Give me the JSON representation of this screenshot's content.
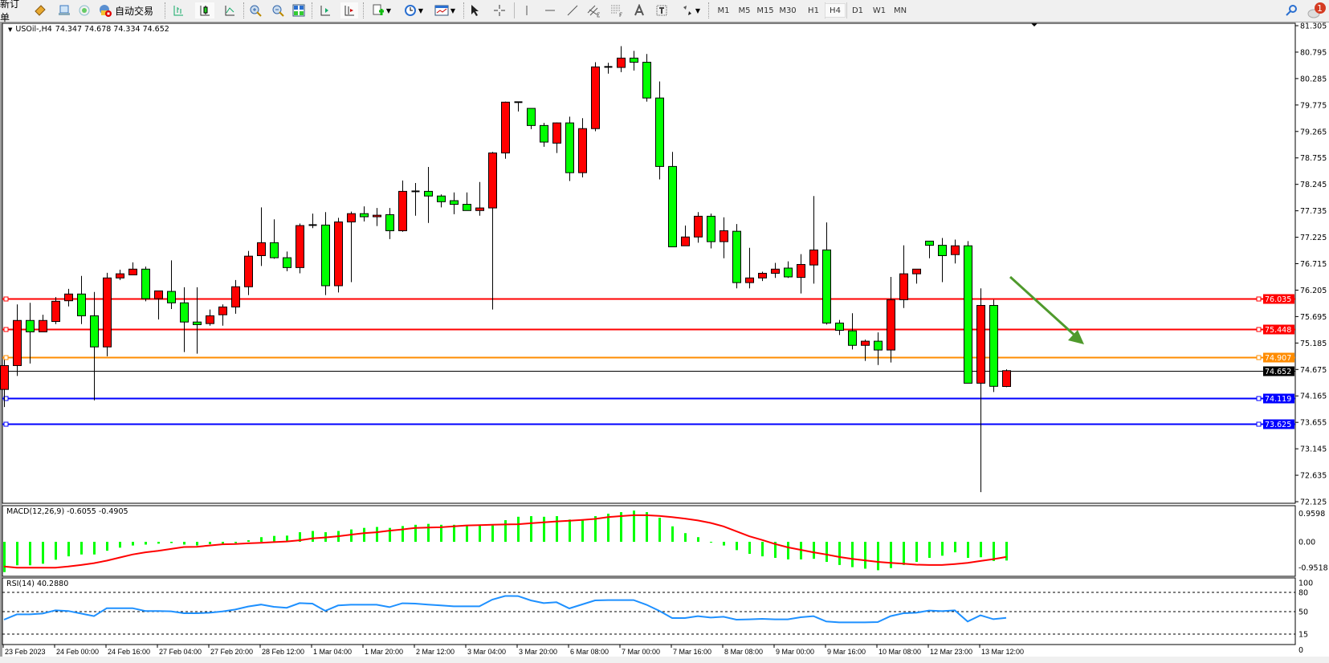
{
  "toolbar": {
    "new_order_label": "新订单",
    "auto_trading_label": "自动交易",
    "periods": [
      "M1",
      "M5",
      "M15",
      "M30",
      "H1",
      "H4",
      "D1",
      "W1",
      "MN"
    ],
    "active_period": "H4",
    "notification_count": "1",
    "icons": [
      "book-icon",
      "terminal-icon",
      "signal-icon",
      "auto-trading-icon",
      "bar-chart-icon",
      "candlestick-icon",
      "line-chart-icon",
      "zoom-in-icon",
      "zoom-out-icon",
      "tile-windows-icon",
      "chart-shift-icon",
      "autoscroll-icon",
      "new-chart-icon",
      "clock-icon",
      "template-icon",
      "cursor-icon",
      "crosshair-icon",
      "vertical-line-icon",
      "horizontal-line-icon",
      "trendline-icon",
      "equidistant-channel-icon",
      "fibonacci-icon",
      "text-icon",
      "text-label-icon",
      "arrows-icon",
      "search-icon",
      "chat-icon"
    ]
  },
  "chart": {
    "symbol_label": "USOil-,H4",
    "ohlc_text": "74.347 74.678 74.334 74.652"
  },
  "chart_data": {
    "type": "candlestick",
    "candle_format": [
      "open",
      "high",
      "low",
      "close"
    ],
    "bull_color": "#ff0000",
    "bear_color": "#00ff00",
    "candles": [
      [
        74.29,
        74.86,
        73.95,
        74.75
      ],
      [
        74.75,
        75.93,
        74.55,
        75.62
      ],
      [
        75.62,
        75.96,
        74.79,
        75.4
      ],
      [
        75.4,
        75.73,
        75.4,
        75.62
      ],
      [
        75.6,
        76.07,
        75.55,
        75.99
      ],
      [
        76.0,
        76.23,
        75.89,
        76.13
      ],
      [
        76.13,
        76.48,
        75.55,
        75.71
      ],
      [
        75.71,
        76.17,
        74.08,
        75.11
      ],
      [
        75.11,
        76.54,
        74.93,
        76.44
      ],
      [
        76.44,
        76.6,
        76.4,
        76.52
      ],
      [
        76.5,
        76.74,
        76.5,
        76.61
      ],
      [
        76.61,
        76.66,
        75.99,
        76.04
      ],
      [
        76.04,
        76.19,
        75.64,
        76.19
      ],
      [
        76.18,
        76.78,
        75.84,
        75.96
      ],
      [
        75.96,
        76.26,
        75.01,
        75.59
      ],
      [
        75.59,
        76.26,
        74.98,
        75.54
      ],
      [
        75.56,
        75.83,
        75.52,
        75.71
      ],
      [
        75.73,
        75.93,
        75.52,
        75.88
      ],
      [
        75.88,
        76.4,
        75.75,
        76.27
      ],
      [
        76.27,
        76.96,
        76.11,
        76.86
      ],
      [
        76.87,
        77.8,
        76.67,
        77.12
      ],
      [
        77.12,
        77.57,
        76.81,
        76.83
      ],
      [
        76.83,
        76.95,
        76.57,
        76.64
      ],
      [
        76.64,
        77.49,
        76.53,
        77.45
      ],
      [
        77.45,
        77.68,
        77.4,
        77.46
      ],
      [
        77.46,
        77.71,
        76.11,
        76.29
      ],
      [
        76.29,
        77.6,
        76.16,
        77.52
      ],
      [
        77.52,
        77.72,
        76.36,
        77.68
      ],
      [
        77.68,
        77.82,
        77.53,
        77.62
      ],
      [
        77.62,
        77.79,
        77.44,
        77.65
      ],
      [
        77.66,
        77.79,
        77.19,
        77.35
      ],
      [
        77.35,
        78.32,
        77.33,
        78.11
      ],
      [
        78.11,
        78.27,
        77.64,
        78.11
      ],
      [
        78.11,
        78.58,
        77.5,
        78.02
      ],
      [
        78.02,
        78.05,
        77.8,
        77.91
      ],
      [
        77.93,
        78.09,
        77.67,
        77.86
      ],
      [
        77.86,
        78.09,
        77.74,
        77.74
      ],
      [
        77.74,
        78.29,
        77.64,
        77.79
      ],
      [
        77.79,
        78.87,
        75.83,
        78.85
      ],
      [
        78.85,
        79.84,
        78.74,
        79.83
      ],
      [
        79.83,
        79.84,
        79.65,
        79.83
      ],
      [
        79.71,
        79.71,
        79.31,
        79.38
      ],
      [
        79.38,
        79.43,
        78.97,
        79.06
      ],
      [
        79.04,
        79.44,
        78.85,
        79.43
      ],
      [
        79.43,
        79.55,
        78.31,
        78.47
      ],
      [
        78.47,
        79.52,
        78.38,
        79.32
      ],
      [
        79.32,
        80.6,
        79.27,
        80.51
      ],
      [
        80.51,
        80.59,
        80.38,
        80.51
      ],
      [
        80.5,
        80.91,
        80.41,
        80.68
      ],
      [
        80.68,
        80.82,
        80.44,
        80.6
      ],
      [
        80.6,
        80.76,
        79.84,
        79.91
      ],
      [
        79.91,
        80.23,
        78.34,
        78.59
      ],
      [
        78.59,
        78.87,
        77.04,
        77.04
      ],
      [
        77.06,
        77.45,
        77.06,
        77.23
      ],
      [
        77.23,
        77.71,
        77.12,
        77.63
      ],
      [
        77.63,
        77.68,
        77.01,
        77.14
      ],
      [
        77.14,
        77.61,
        76.82,
        77.35
      ],
      [
        77.34,
        77.48,
        76.24,
        76.35
      ],
      [
        76.35,
        77.02,
        76.24,
        76.44
      ],
      [
        76.44,
        76.56,
        76.38,
        76.53
      ],
      [
        76.53,
        76.73,
        76.44,
        76.61
      ],
      [
        76.63,
        76.76,
        76.44,
        76.46
      ],
      [
        76.45,
        76.9,
        76.14,
        76.7
      ],
      [
        76.69,
        78.02,
        76.33,
        76.98
      ],
      [
        76.98,
        77.51,
        75.54,
        75.57
      ],
      [
        75.57,
        75.63,
        75.34,
        75.43
      ],
      [
        75.42,
        75.76,
        75.06,
        75.14
      ],
      [
        75.14,
        75.25,
        74.84,
        75.22
      ],
      [
        75.22,
        75.39,
        74.76,
        75.05
      ],
      [
        75.05,
        76.46,
        74.81,
        76.02
      ],
      [
        76.02,
        77.07,
        75.86,
        76.52
      ],
      [
        76.52,
        76.61,
        76.33,
        76.61
      ],
      [
        77.15,
        77.15,
        76.82,
        77.07
      ],
      [
        77.07,
        77.21,
        76.36,
        76.87
      ],
      [
        76.89,
        77.18,
        76.72,
        77.06
      ],
      [
        77.06,
        77.15,
        74.41,
        74.41
      ],
      [
        74.41,
        76.24,
        72.31,
        75.91
      ],
      [
        75.91,
        76.02,
        74.24,
        74.35
      ],
      [
        74.347,
        74.678,
        74.334,
        74.652
      ]
    ],
    "price_axis": {
      "ylim": [
        72.125,
        81.305
      ],
      "ticks": [
        "81.305",
        "80.795",
        "80.285",
        "79.775",
        "79.265",
        "78.755",
        "78.245",
        "77.735",
        "77.225",
        "76.715",
        "76.205",
        "75.695",
        "75.185",
        "74.675",
        "74.165",
        "73.655",
        "73.145",
        "72.635",
        "72.125"
      ]
    },
    "horizontal_lines": [
      {
        "price": "76.035",
        "color": "#ff0000"
      },
      {
        "price": "75.448",
        "color": "#ff0000"
      },
      {
        "price": "74.907",
        "color": "#ff8c00"
      },
      {
        "price": "74.652",
        "color": "#000000"
      },
      {
        "price": "74.119",
        "color": "#0000ff"
      },
      {
        "price": "73.625",
        "color": "#0000ff"
      }
    ],
    "annotation_arrow": {
      "color": "#4f9a2c",
      "direction": "down-right"
    },
    "time_labels": [
      "23 Feb 2023",
      "24 Feb 00:00",
      "24 Feb 16:00",
      "27 Feb 04:00",
      "27 Feb 20:00",
      "28 Feb 12:00",
      "1 Mar 04:00",
      "1 Mar 20:00",
      "2 Mar 12:00",
      "3 Mar 04:00",
      "3 Mar 20:00",
      "6 Mar 08:00",
      "7 Mar 00:00",
      "7 Mar 16:00",
      "8 Mar 08:00",
      "9 Mar 00:00",
      "9 Mar 16:00",
      "10 Mar 08:00",
      "12 Mar 23:00",
      "13 Mar 12:00"
    ],
    "macd": {
      "label": "MACD(12,26,9) -0.6055 -0.4905",
      "axis_ticks": [
        "0.9598",
        "0.00",
        "-0.9518"
      ],
      "ylim": [
        -0.9518,
        0.9598
      ],
      "histogram_color": "#00ff00",
      "signal_color": "#ff0000",
      "histogram": [
        -0.98,
        -0.76,
        -0.76,
        -0.71,
        -0.58,
        -0.47,
        -0.41,
        -0.41,
        -0.29,
        -0.19,
        -0.12,
        -0.09,
        -0.06,
        -0.04,
        -0.09,
        -0.12,
        -0.08,
        -0.06,
        -0.04,
        0.05,
        0.15,
        0.19,
        0.2,
        0.31,
        0.35,
        0.31,
        0.35,
        0.4,
        0.45,
        0.48,
        0.45,
        0.51,
        0.55,
        0.58,
        0.55,
        0.55,
        0.53,
        0.53,
        0.53,
        0.7,
        0.81,
        0.83,
        0.81,
        0.83,
        0.72,
        0.7,
        0.83,
        0.91,
        0.96,
        1.01,
        0.96,
        0.78,
        0.5,
        0.28,
        0.15,
        -0.01,
        -0.12,
        -0.27,
        -0.39,
        -0.47,
        -0.52,
        -0.57,
        -0.57,
        -0.55,
        -0.65,
        -0.75,
        -0.82,
        -0.87,
        -0.92,
        -0.85,
        -0.75,
        -0.65,
        -0.52,
        -0.45,
        -0.34,
        -0.52,
        -0.5,
        -0.62,
        -0.6055
      ],
      "signal": [
        -0.8,
        -0.84,
        -0.84,
        -0.84,
        -0.84,
        -0.8,
        -0.75,
        -0.69,
        -0.61,
        -0.51,
        -0.41,
        -0.34,
        -0.29,
        -0.23,
        -0.17,
        -0.16,
        -0.12,
        -0.08,
        -0.07,
        -0.05,
        -0.03,
        -0.01,
        0.01,
        0.05,
        0.11,
        0.14,
        0.18,
        0.23,
        0.28,
        0.31,
        0.36,
        0.4,
        0.45,
        0.46,
        0.47,
        0.5,
        0.53,
        0.54,
        0.55,
        0.56,
        0.57,
        0.6,
        0.63,
        0.66,
        0.68,
        0.71,
        0.74,
        0.8,
        0.83,
        0.86,
        0.86,
        0.84,
        0.8,
        0.75,
        0.69,
        0.61,
        0.5,
        0.34,
        0.18,
        0.06,
        -0.07,
        -0.18,
        -0.26,
        -0.34,
        -0.41,
        -0.49,
        -0.55,
        -0.6,
        -0.65,
        -0.68,
        -0.71,
        -0.74,
        -0.75,
        -0.75,
        -0.72,
        -0.68,
        -0.62,
        -0.56,
        -0.4905
      ]
    },
    "rsi": {
      "label": "RSI(14) 40.2880",
      "axis_ticks": [
        "100",
        "80",
        "50",
        "15",
        "0"
      ],
      "levels": [
        80,
        50,
        15
      ],
      "ylim": [
        0,
        100
      ],
      "color": "#1e90ff",
      "values": [
        37.5,
        45.8,
        45.8,
        47,
        52,
        51,
        47,
        43,
        55.4,
        55.4,
        55.4,
        51,
        51,
        50.5,
        47.5,
        47.5,
        48.3,
        50.4,
        53.3,
        58,
        61,
        57.5,
        56,
        63.3,
        62.5,
        51.3,
        59.6,
        60.8,
        60.8,
        60.8,
        57,
        63,
        62.5,
        61,
        59.6,
        58.3,
        58.3,
        58.3,
        68.8,
        74.4,
        74.2,
        67.5,
        63.3,
        64.6,
        55,
        61.3,
        67.5,
        68,
        68,
        68,
        60.8,
        51.3,
        40,
        40,
        43,
        40.8,
        42,
        37.5,
        38,
        38.8,
        38,
        38,
        41.3,
        43,
        34.6,
        33.3,
        33.3,
        33.3,
        33.8,
        43,
        47.5,
        48.3,
        51.7,
        50.8,
        52,
        34.6,
        44.2,
        38.3,
        40.288
      ]
    }
  }
}
